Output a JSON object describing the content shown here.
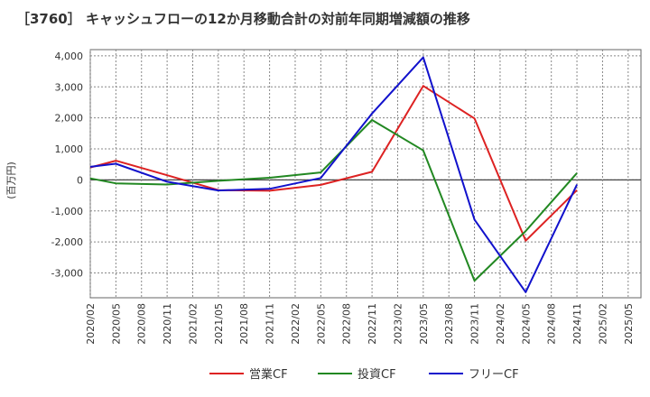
{
  "chart_data": {
    "type": "line",
    "title": "［3760］ キャッシュフローの12か月移動合計の対前年同期増減額の推移",
    "ylabel": "(百万円)",
    "ylim": [
      -3800,
      4200
    ],
    "yticks": [
      4000,
      3000,
      2000,
      1000,
      0,
      -1000,
      -2000,
      -3000
    ],
    "ytick_labels": [
      "4,000",
      "3,000",
      "2,000",
      "1,000",
      "0",
      "-1,000",
      "-2,000",
      "-3,000"
    ],
    "xtick_labels": [
      "2020/02",
      "2020/05",
      "2020/08",
      "2020/11",
      "2021/02",
      "2021/05",
      "2021/08",
      "2021/11",
      "2022/02",
      "2022/05",
      "2022/08",
      "2022/11",
      "2023/02",
      "2023/05",
      "2023/08",
      "2023/11",
      "2024/02",
      "2024/05",
      "2024/08",
      "2024/11",
      "2025/02",
      "2025/05"
    ],
    "grid": true,
    "legend_position": "bottom",
    "series": [
      {
        "name": "営業CF",
        "color": "#dd2222",
        "points": [
          [
            0,
            400
          ],
          [
            1,
            620
          ],
          [
            3,
            150
          ],
          [
            5,
            -330
          ],
          [
            7,
            -350
          ],
          [
            9,
            -160
          ],
          [
            11,
            260
          ],
          [
            13,
            3030
          ],
          [
            15,
            1980
          ],
          [
            17,
            -1960
          ],
          [
            19,
            -330
          ]
        ]
      },
      {
        "name": "投資CF",
        "color": "#228822",
        "points": [
          [
            0,
            50
          ],
          [
            1,
            -110
          ],
          [
            3,
            -150
          ],
          [
            5,
            -30
          ],
          [
            7,
            70
          ],
          [
            9,
            240
          ],
          [
            11,
            1930
          ],
          [
            13,
            950
          ],
          [
            15,
            -3250
          ],
          [
            17,
            -1650
          ],
          [
            19,
            220
          ]
        ]
      },
      {
        "name": "フリーCF",
        "color": "#1111cc",
        "points": [
          [
            0,
            420
          ],
          [
            1,
            520
          ],
          [
            3,
            -60
          ],
          [
            5,
            -340
          ],
          [
            7,
            -290
          ],
          [
            9,
            60
          ],
          [
            11,
            2140
          ],
          [
            13,
            3950
          ],
          [
            15,
            -1280
          ],
          [
            17,
            -3620
          ],
          [
            19,
            -150
          ]
        ]
      }
    ]
  }
}
